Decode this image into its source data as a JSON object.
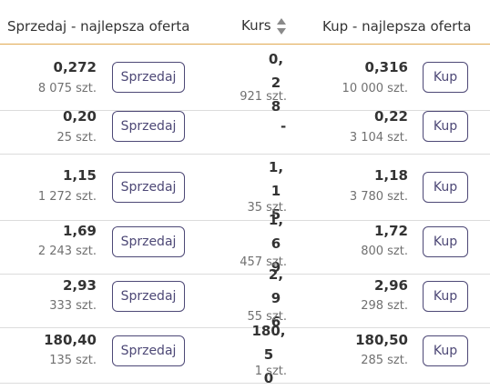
{
  "header": {
    "sell_title": "Sprzedaj - najlepsza oferta",
    "kurs_title": "Kurs",
    "buy_title": "Kup - najlepsza oferta",
    "sort_icon": "sort-up-down-icon"
  },
  "rows": [
    {
      "sell_price": "0,272",
      "sell_qty": "8 075 szt.",
      "sell_btn": "Sprzedaj",
      "kurs": "0,28",
      "kurs_qty": "921 szt.",
      "buy_price": "0,316",
      "buy_qty": "10 000 szt.",
      "buy_btn": "Kup"
    },
    {
      "sell_price": "0,20",
      "sell_qty": "25 szt.",
      "sell_btn": "Sprzedaj",
      "kurs": "-",
      "kurs_qty": "",
      "buy_price": "0,22",
      "buy_qty": "3 104 szt.",
      "buy_btn": "Kup"
    },
    {
      "sell_price": "1,15",
      "sell_qty": "1 272 szt.",
      "sell_btn": "Sprzedaj",
      "kurs": "1,15",
      "kurs_qty": "35 szt.",
      "buy_price": "1,18",
      "buy_qty": "3 780 szt.",
      "buy_btn": "Kup"
    },
    {
      "sell_price": "1,69",
      "sell_qty": "2 243 szt.",
      "sell_btn": "Sprzedaj",
      "kurs": "1,69",
      "kurs_qty": "457 szt.",
      "buy_price": "1,72",
      "buy_qty": "800 szt.",
      "buy_btn": "Kup"
    },
    {
      "sell_price": "2,93",
      "sell_qty": "333 szt.",
      "sell_btn": "Sprzedaj",
      "kurs": "2,96",
      "kurs_qty": "55 szt.",
      "buy_price": "2,96",
      "buy_qty": "298 szt.",
      "buy_btn": "Kup"
    },
    {
      "sell_price": "180,40",
      "sell_qty": "135 szt.",
      "sell_btn": "Sprzedaj",
      "kurs": "180,50",
      "kurs_qty": "1 szt.",
      "buy_price": "180,50",
      "buy_qty": "285 szt.",
      "buy_btn": "Kup"
    }
  ],
  "colors": {
    "accent_border": "#e0a850",
    "button": "#4d4876",
    "qty_text": "#707070"
  }
}
